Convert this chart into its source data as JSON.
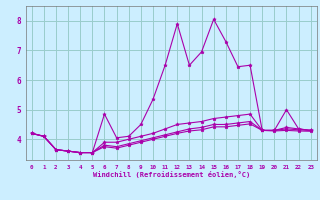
{
  "background_color": "#cceeff",
  "line_color": "#aa00aa",
  "grid_color": "#99cccc",
  "xlabel": "Windchill (Refroidissement éolien,°C)",
  "xlim": [
    -0.5,
    23.5
  ],
  "ylim": [
    3.3,
    8.5
  ],
  "xticks": [
    0,
    1,
    2,
    3,
    4,
    5,
    6,
    7,
    8,
    9,
    10,
    11,
    12,
    13,
    14,
    15,
    16,
    17,
    18,
    19,
    20,
    21,
    22,
    23
  ],
  "yticks": [
    4,
    5,
    6,
    7,
    8
  ],
  "series": [
    [
      4.2,
      4.1,
      3.65,
      3.6,
      3.55,
      3.55,
      4.85,
      4.05,
      4.1,
      4.5,
      5.35,
      6.5,
      7.9,
      6.5,
      6.95,
      8.05,
      7.3,
      6.45,
      6.5,
      4.3,
      4.3,
      5.0,
      4.35,
      4.3
    ],
    [
      4.2,
      4.1,
      3.65,
      3.6,
      3.55,
      3.55,
      3.9,
      3.9,
      4.0,
      4.1,
      4.2,
      4.35,
      4.5,
      4.55,
      4.6,
      4.7,
      4.75,
      4.8,
      4.85,
      4.3,
      4.3,
      4.4,
      4.35,
      4.3
    ],
    [
      4.2,
      4.1,
      3.65,
      3.6,
      3.55,
      3.55,
      3.8,
      3.75,
      3.85,
      3.95,
      4.05,
      4.15,
      4.25,
      4.35,
      4.4,
      4.5,
      4.5,
      4.55,
      4.6,
      4.3,
      4.3,
      4.35,
      4.32,
      4.3
    ],
    [
      4.2,
      4.1,
      3.65,
      3.6,
      3.55,
      3.55,
      3.75,
      3.7,
      3.8,
      3.9,
      4.0,
      4.1,
      4.2,
      4.28,
      4.32,
      4.42,
      4.42,
      4.47,
      4.52,
      4.3,
      4.28,
      4.3,
      4.28,
      4.27
    ]
  ]
}
